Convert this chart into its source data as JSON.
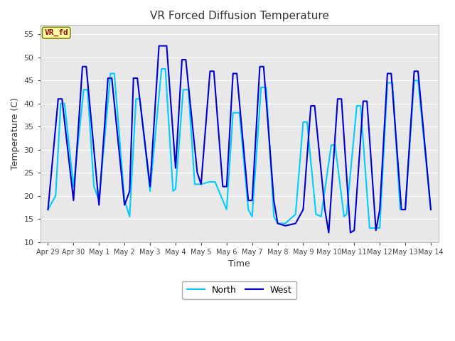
{
  "title": "VR Forced Diffusion Temperature",
  "xlabel": "Time",
  "ylabel": "Temperature (C)",
  "ylim": [
    10,
    57
  ],
  "fig_bg_color": "#FFFFFF",
  "bg_color": "#E8E8E8",
  "west_color": "#0000CD",
  "north_color": "#00CCFF",
  "legend_west": "West",
  "legend_north": "North",
  "label_text": "VR_fd",
  "label_bg": "#FFFFAA",
  "label_fg": "#990000",
  "label_border": "#888800",
  "west_linewidth": 1.5,
  "north_linewidth": 1.5,
  "ytick_positions": [
    10,
    15,
    20,
    25,
    30,
    35,
    40,
    45,
    50,
    55
  ],
  "xtick_labels": [
    "Apr 29",
    "Apr 30",
    "May 1",
    "May 2",
    "May 3",
    "May 4",
    "May 5",
    "May 6",
    "May 7",
    "May 8",
    "May 9",
    "May 10",
    "May 11",
    "May 12",
    "May 13",
    "May 14"
  ],
  "west_data": [
    [
      0.0,
      17
    ],
    [
      0.4,
      41
    ],
    [
      0.55,
      41
    ],
    [
      1.0,
      19
    ],
    [
      1.35,
      48
    ],
    [
      1.5,
      48
    ],
    [
      2.0,
      18
    ],
    [
      2.35,
      45.5
    ],
    [
      2.5,
      45.5
    ],
    [
      3.0,
      18
    ],
    [
      3.2,
      21
    ],
    [
      3.35,
      45.5
    ],
    [
      3.5,
      45.5
    ],
    [
      4.0,
      22
    ],
    [
      4.35,
      52.5
    ],
    [
      4.5,
      52.5
    ],
    [
      4.65,
      52.5
    ],
    [
      5.0,
      26
    ],
    [
      5.25,
      49.5
    ],
    [
      5.4,
      49.5
    ],
    [
      5.85,
      25
    ],
    [
      6.0,
      22.5
    ],
    [
      6.35,
      47
    ],
    [
      6.5,
      47
    ],
    [
      6.85,
      22
    ],
    [
      7.0,
      22
    ],
    [
      7.25,
      46.5
    ],
    [
      7.4,
      46.5
    ],
    [
      7.85,
      19
    ],
    [
      8.0,
      19
    ],
    [
      8.3,
      48
    ],
    [
      8.45,
      48
    ],
    [
      8.85,
      19
    ],
    [
      9.0,
      14
    ],
    [
      9.3,
      13.5
    ],
    [
      9.7,
      14
    ],
    [
      10.0,
      17
    ],
    [
      10.3,
      39.5
    ],
    [
      10.45,
      39.5
    ],
    [
      10.85,
      17
    ],
    [
      11.0,
      12
    ],
    [
      11.35,
      41
    ],
    [
      11.5,
      41
    ],
    [
      11.85,
      12
    ],
    [
      12.0,
      12.5
    ],
    [
      12.35,
      40.5
    ],
    [
      12.5,
      40.5
    ],
    [
      12.85,
      12.5
    ],
    [
      13.0,
      17
    ],
    [
      13.3,
      46.5
    ],
    [
      13.45,
      46.5
    ],
    [
      13.85,
      17
    ],
    [
      14.0,
      17
    ],
    [
      14.35,
      47
    ],
    [
      14.5,
      47
    ],
    [
      15.0,
      17
    ]
  ],
  "north_data": [
    [
      0.0,
      17
    ],
    [
      0.3,
      20
    ],
    [
      0.5,
      40
    ],
    [
      0.65,
      40
    ],
    [
      1.0,
      22
    ],
    [
      1.4,
      43
    ],
    [
      1.55,
      43
    ],
    [
      1.8,
      22
    ],
    [
      2.0,
      19
    ],
    [
      2.45,
      46.5
    ],
    [
      2.6,
      46.5
    ],
    [
      3.0,
      19
    ],
    [
      3.2,
      15.5
    ],
    [
      3.45,
      41
    ],
    [
      3.6,
      41
    ],
    [
      4.0,
      21
    ],
    [
      4.45,
      47.5
    ],
    [
      4.6,
      47.5
    ],
    [
      4.9,
      21
    ],
    [
      5.0,
      21.5
    ],
    [
      5.3,
      43
    ],
    [
      5.5,
      43
    ],
    [
      5.75,
      22.5
    ],
    [
      6.0,
      22.5
    ],
    [
      6.3,
      23
    ],
    [
      6.55,
      23
    ],
    [
      7.0,
      17
    ],
    [
      7.25,
      38
    ],
    [
      7.5,
      38
    ],
    [
      7.85,
      17
    ],
    [
      8.0,
      15.5
    ],
    [
      8.35,
      43.5
    ],
    [
      8.55,
      43.5
    ],
    [
      8.85,
      15.5
    ],
    [
      9.0,
      14
    ],
    [
      9.3,
      14
    ],
    [
      9.7,
      16
    ],
    [
      10.0,
      36
    ],
    [
      10.15,
      36
    ],
    [
      10.5,
      16
    ],
    [
      10.7,
      15.5
    ],
    [
      11.1,
      31
    ],
    [
      11.25,
      31
    ],
    [
      11.6,
      15.5
    ],
    [
      11.7,
      16
    ],
    [
      12.1,
      39.5
    ],
    [
      12.25,
      39.5
    ],
    [
      12.6,
      13
    ],
    [
      13.0,
      13
    ],
    [
      13.3,
      44.5
    ],
    [
      13.5,
      44.5
    ],
    [
      13.8,
      17
    ],
    [
      14.0,
      17
    ],
    [
      14.35,
      45
    ],
    [
      14.5,
      45
    ],
    [
      15.0,
      17
    ]
  ]
}
